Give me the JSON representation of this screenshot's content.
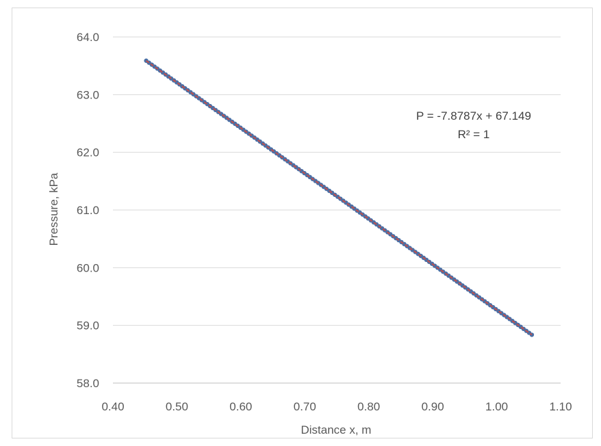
{
  "chart_data": {
    "type": "scatter",
    "title": "",
    "xlabel": "Distance x, m",
    "ylabel": "Pressure, kPa",
    "xlim": [
      0.4,
      1.1
    ],
    "ylim": [
      58.0,
      64.0
    ],
    "x_ticks": [
      "0.40",
      "0.50",
      "0.60",
      "0.70",
      "0.80",
      "0.90",
      "1.00",
      "1.10"
    ],
    "y_ticks": [
      "58.0",
      "59.0",
      "60.0",
      "61.0",
      "62.0",
      "63.0",
      "64.0"
    ],
    "grid": "horizontal",
    "legend": "none",
    "series": [
      {
        "color": "#4a6fa5",
        "marker": "dense-points",
        "x_range": [
          0.452,
          1.055
        ],
        "y_range": [
          63.59,
          58.84
        ]
      }
    ],
    "trendline": {
      "type": "linear",
      "slope": -7.8787,
      "intercept": 67.149,
      "color": "#c0504d",
      "equation": "P = -7.8787x + 67.149",
      "r_squared": "R² = 1"
    },
    "colors": {
      "gridline": "#d9d9d9",
      "axis": "#bfbfbf",
      "text": "#595959"
    }
  }
}
